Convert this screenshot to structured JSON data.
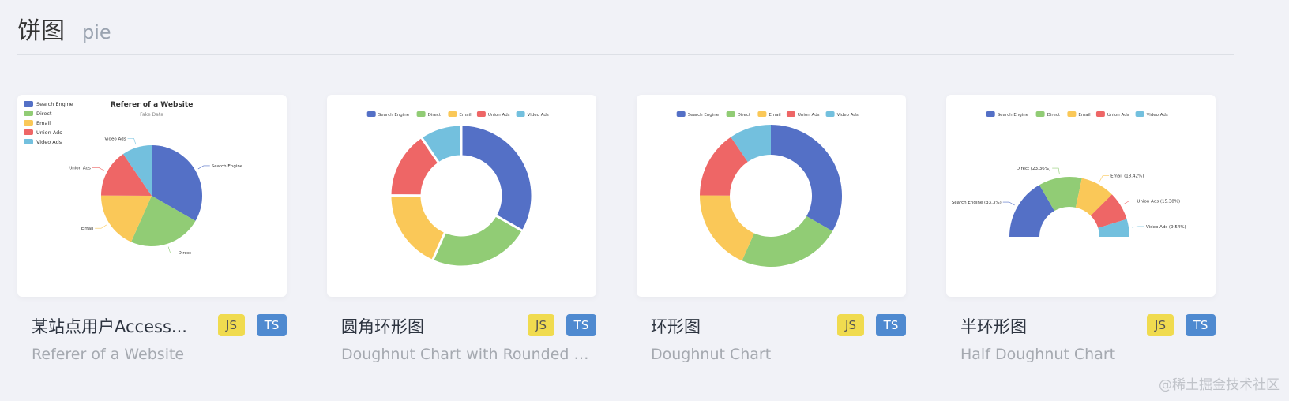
{
  "header": {
    "title": "饼图",
    "subtitle": "pie"
  },
  "colors": [
    "#5470c6",
    "#91cc75",
    "#fac858",
    "#ee6666",
    "#73c0de"
  ],
  "legend": [
    "Search Engine",
    "Direct",
    "Email",
    "Union Ads",
    "Video Ads"
  ],
  "cards": [
    {
      "title": "某站点用户Access...",
      "subtitle": "Referer of a Website",
      "js": "JS",
      "ts": "TS",
      "chart": {
        "type": "pie",
        "title": "Referer of a Website",
        "subtext": "Fake Data",
        "legend_position": "top-left",
        "labels": [
          "Search Engine",
          "Direct",
          "Email",
          "Union Ads",
          "Video Ads"
        ]
      }
    },
    {
      "title": "圆角环形图",
      "subtitle": "Doughnut Chart with Rounded C...",
      "js": "JS",
      "ts": "TS",
      "chart": {
        "type": "doughnut-rounded",
        "legend_position": "top"
      }
    },
    {
      "title": "环形图",
      "subtitle": "Doughnut Chart",
      "js": "JS",
      "ts": "TS",
      "chart": {
        "type": "doughnut",
        "legend_position": "top"
      }
    },
    {
      "title": "半环形图",
      "subtitle": "Half Doughnut Chart",
      "js": "JS",
      "ts": "TS",
      "chart": {
        "type": "half-doughnut",
        "legend_position": "top",
        "labels": [
          "Search Engine (33.3%)",
          "Direct (23.36%)",
          "Email (18.42%)",
          "Union Ads (15.38%)",
          "Video Ads (9.54%)"
        ]
      }
    }
  ],
  "chart_data": {
    "type": "pie",
    "categories": [
      "Search Engine",
      "Direct",
      "Email",
      "Union Ads",
      "Video Ads"
    ],
    "values": [
      1048,
      735,
      580,
      484,
      300
    ]
  },
  "watermark": "@稀土掘金技术社区"
}
